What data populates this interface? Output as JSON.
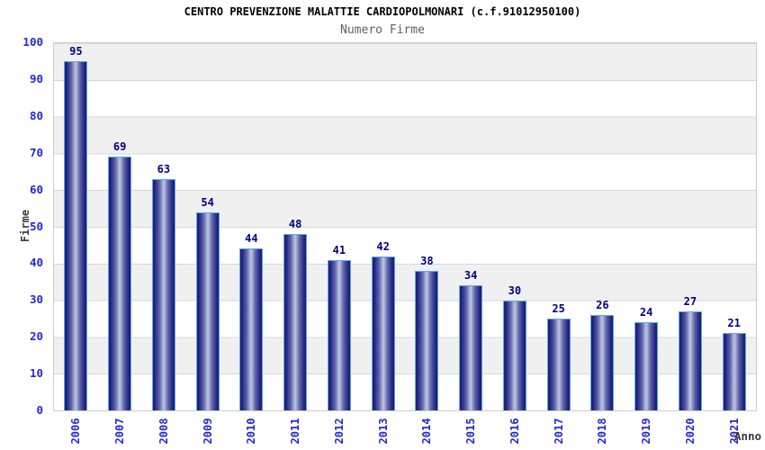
{
  "chart_data": {
    "type": "bar",
    "title": "CENTRO PREVENZIONE MALATTIE CARDIOPOLMONARI (c.f.91012950100)",
    "subtitle": "Numero Firme",
    "xlabel": "Anno",
    "ylabel": "Firme",
    "categories": [
      "2006",
      "2007",
      "2008",
      "2009",
      "2010",
      "2011",
      "2012",
      "2013",
      "2014",
      "2015",
      "2016",
      "2017",
      "2018",
      "2019",
      "2020",
      "2021"
    ],
    "values": [
      95,
      69,
      63,
      54,
      44,
      48,
      41,
      42,
      38,
      34,
      30,
      25,
      26,
      24,
      27,
      21
    ],
    "ylim": [
      0,
      100
    ],
    "ytick_step": 10,
    "yticks": [
      0,
      10,
      20,
      30,
      40,
      50,
      60,
      70,
      80,
      90,
      100
    ],
    "grid": "horizontal alternating bands, gray from 90-100 downward every other 10 units",
    "legend_position": "none",
    "bar_labels_shown": true,
    "colors": {
      "title": "#000000",
      "subtitle": "#606060",
      "axis_label_blue": "#2626d8",
      "value_label": "#000080",
      "axis_title": "#3a3a3a",
      "bar_dark": "#1a1d7e",
      "bar_mid": "#5d64ab",
      "bar_light": "#c2c7e4",
      "bar_border": "#5aa8ee",
      "band_gray": "#f0f0f0",
      "grid_line": "#d7d7d7",
      "plot_border": "#cccccc"
    }
  }
}
